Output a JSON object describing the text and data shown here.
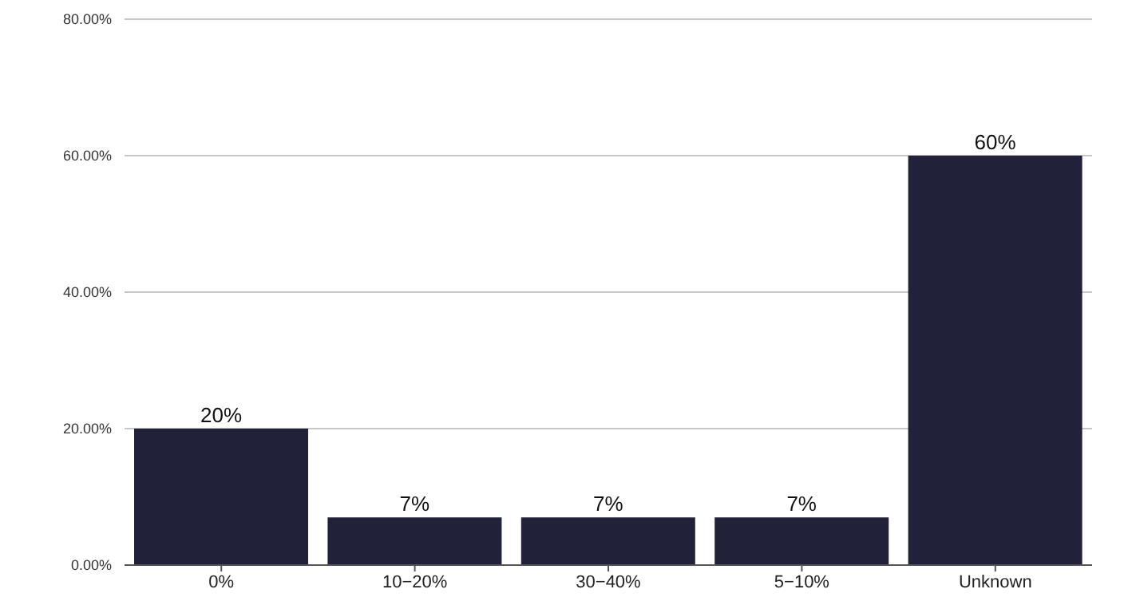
{
  "chart_data": {
    "type": "bar",
    "categories": [
      "0%",
      "10−20%",
      "30−40%",
      "5−10%",
      "Unknown"
    ],
    "values": [
      20,
      7,
      7,
      7,
      60
    ],
    "value_labels": [
      "20%",
      "7%",
      "7%",
      "7%",
      "60%"
    ],
    "color": "#21213a",
    "ylim": [
      0,
      80
    ],
    "yticks": [
      {
        "value": 0,
        "label": "0.00%"
      },
      {
        "value": 20,
        "label": "20.00%"
      },
      {
        "value": 40,
        "label": "40.00%"
      },
      {
        "value": 60,
        "label": "60.00%"
      },
      {
        "value": 80,
        "label": "80.00%"
      }
    ],
    "grid": "y"
  }
}
